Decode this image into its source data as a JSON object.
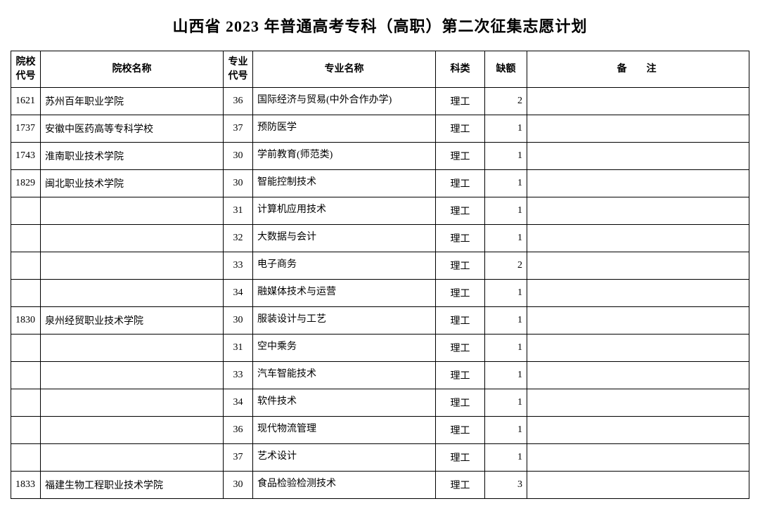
{
  "title": "山西省 2023 年普通高考专科（高职）第二次征集志愿计划",
  "headers": {
    "school_code": "院校\n代号",
    "school_name": "院校名称",
    "major_code": "专业\n代号",
    "major_name": "专业名称",
    "category": "科类",
    "vacancy": "缺额",
    "remark": "备注"
  },
  "rows": [
    {
      "school_code": "1621",
      "school_name": "苏州百年职业学院",
      "major_code": "36",
      "major_name": "国际经济与贸易(中外合作办学)",
      "category": "理工",
      "vacancy": "2",
      "remark": ""
    },
    {
      "school_code": "1737",
      "school_name": "安徽中医药高等专科学校",
      "major_code": "37",
      "major_name": "预防医学",
      "category": "理工",
      "vacancy": "1",
      "remark": ""
    },
    {
      "school_code": "1743",
      "school_name": "淮南职业技术学院",
      "major_code": "30",
      "major_name": "学前教育(师范类)",
      "category": "理工",
      "vacancy": "1",
      "remark": ""
    },
    {
      "school_code": "1829",
      "school_name": "闽北职业技术学院",
      "major_code": "30",
      "major_name": "智能控制技术",
      "category": "理工",
      "vacancy": "1",
      "remark": ""
    },
    {
      "school_code": "",
      "school_name": "",
      "major_code": "31",
      "major_name": "计算机应用技术",
      "category": "理工",
      "vacancy": "1",
      "remark": ""
    },
    {
      "school_code": "",
      "school_name": "",
      "major_code": "32",
      "major_name": "大数据与会计",
      "category": "理工",
      "vacancy": "1",
      "remark": ""
    },
    {
      "school_code": "",
      "school_name": "",
      "major_code": "33",
      "major_name": "电子商务",
      "category": "理工",
      "vacancy": "2",
      "remark": ""
    },
    {
      "school_code": "",
      "school_name": "",
      "major_code": "34",
      "major_name": "融媒体技术与运营",
      "category": "理工",
      "vacancy": "1",
      "remark": ""
    },
    {
      "school_code": "1830",
      "school_name": "泉州经贸职业技术学院",
      "major_code": "30",
      "major_name": "服装设计与工艺",
      "category": "理工",
      "vacancy": "1",
      "remark": ""
    },
    {
      "school_code": "",
      "school_name": "",
      "major_code": "31",
      "major_name": "空中乘务",
      "category": "理工",
      "vacancy": "1",
      "remark": ""
    },
    {
      "school_code": "",
      "school_name": "",
      "major_code": "33",
      "major_name": "汽车智能技术",
      "category": "理工",
      "vacancy": "1",
      "remark": ""
    },
    {
      "school_code": "",
      "school_name": "",
      "major_code": "34",
      "major_name": "软件技术",
      "category": "理工",
      "vacancy": "1",
      "remark": ""
    },
    {
      "school_code": "",
      "school_name": "",
      "major_code": "36",
      "major_name": "现代物流管理",
      "category": "理工",
      "vacancy": "1",
      "remark": ""
    },
    {
      "school_code": "",
      "school_name": "",
      "major_code": "37",
      "major_name": "艺术设计",
      "category": "理工",
      "vacancy": "1",
      "remark": ""
    },
    {
      "school_code": "1833",
      "school_name": "福建生物工程职业技术学院",
      "major_code": "30",
      "major_name": "食品检验检测技术",
      "category": "理工",
      "vacancy": "3",
      "remark": ""
    }
  ]
}
